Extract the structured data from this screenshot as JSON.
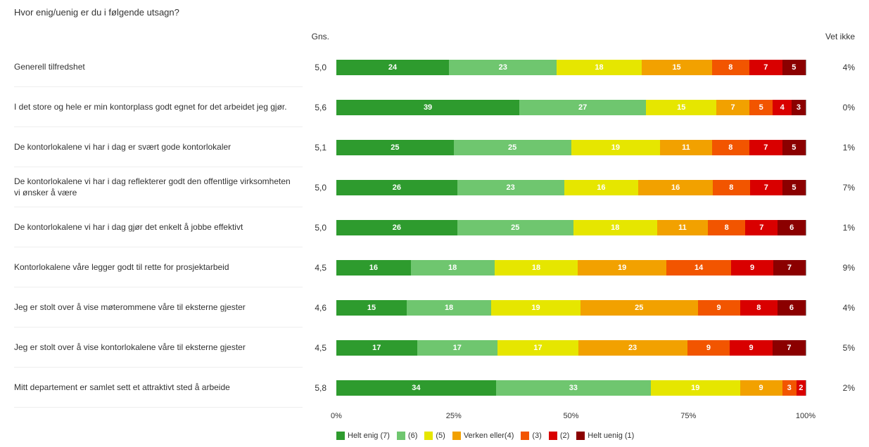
{
  "title": "Hvor enig/uenig er du i følgende utsagn?",
  "headers": {
    "gns": "Gns.",
    "vetikke": "Vet ikke"
  },
  "axis": {
    "ticks": [
      0,
      25,
      50,
      75,
      100
    ],
    "suffix": "%"
  },
  "colors": [
    "#2e9b2e",
    "#6fc66f",
    "#e6e600",
    "#f2a100",
    "#f25500",
    "#d90000",
    "#8b0000"
  ],
  "legend": [
    {
      "label": "Helt enig (7)"
    },
    {
      "label": "(6)"
    },
    {
      "label": "(5)"
    },
    {
      "label": "Verken eller(4)"
    },
    {
      "label": "(3)"
    },
    {
      "label": "(2)"
    },
    {
      "label": "Helt uenig (1)"
    }
  ],
  "rows": [
    {
      "label": "Generell tilfredshet",
      "gns": "5,0",
      "vetikke": "4%",
      "values": [
        24,
        23,
        18,
        15,
        8,
        7,
        5
      ]
    },
    {
      "label": "I det store og hele er min kontorplass godt egnet for det arbeidet jeg gjør.",
      "gns": "5,6",
      "vetikke": "0%",
      "values": [
        39,
        27,
        15,
        7,
        5,
        4,
        3
      ]
    },
    {
      "label": "De kontorlokalene vi har i dag er svært gode kontorlokaler",
      "gns": "5,1",
      "vetikke": "1%",
      "values": [
        25,
        25,
        19,
        11,
        8,
        7,
        5
      ]
    },
    {
      "label": "De kontorlokalene vi har i dag reflekterer godt den offentlige virksomheten vi ønsker å være",
      "gns": "5,0",
      "vetikke": "7%",
      "values": [
        26,
        23,
        16,
        16,
        8,
        7,
        5
      ]
    },
    {
      "label": "De kontorlokalene vi har i dag gjør det enkelt å jobbe effektivt",
      "gns": "5,0",
      "vetikke": "1%",
      "values": [
        26,
        25,
        18,
        11,
        8,
        7,
        6
      ]
    },
    {
      "label": "Kontorlokalene våre legger godt til rette for prosjektarbeid",
      "gns": "4,5",
      "vetikke": "9%",
      "values": [
        16,
        18,
        18,
        19,
        14,
        9,
        7
      ]
    },
    {
      "label": "Jeg er stolt over å vise møterommene våre til eksterne gjester",
      "gns": "4,6",
      "vetikke": "4%",
      "values": [
        15,
        18,
        19,
        25,
        9,
        8,
        6
      ]
    },
    {
      "label": "Jeg er stolt over å vise kontorlokalene våre til eksterne gjester",
      "gns": "4,5",
      "vetikke": "5%",
      "values": [
        17,
        17,
        17,
        23,
        9,
        9,
        7
      ]
    },
    {
      "label": "Mitt departement er samlet sett et attraktivt sted å arbeide",
      "gns": "5,8",
      "vetikke": "2%",
      "values": [
        34,
        33,
        19,
        9,
        3,
        2
      ]
    }
  ]
}
